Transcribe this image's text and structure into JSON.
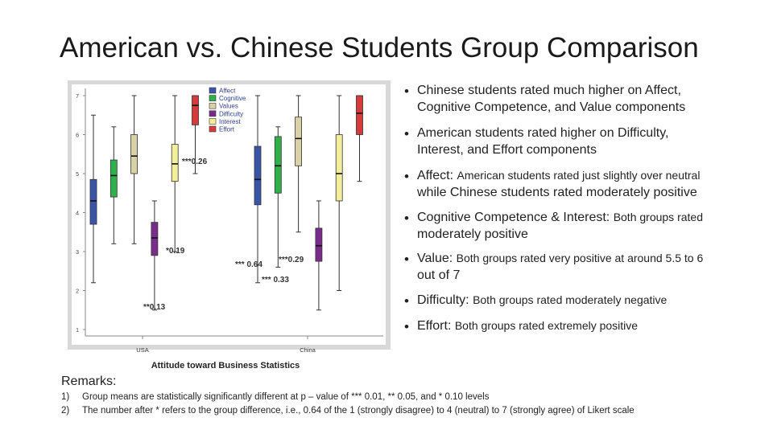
{
  "title": "American vs. Chinese Students Group Comparison",
  "chart_data": {
    "type": "boxplot",
    "xlabel": "Attitude toward Business Statistics",
    "categories": [
      "USA",
      "China"
    ],
    "y_ticks": [
      "1",
      "2",
      "3",
      "4",
      "5",
      "6",
      "7"
    ],
    "ylim": [
      1,
      7
    ],
    "legend": [
      {
        "name": "Affect",
        "color": "#3a55a8"
      },
      {
        "name": "Cognitive",
        "color": "#2fb04a"
      },
      {
        "name": "Values",
        "color": "#d9d2a6"
      },
      {
        "name": "Difficulty",
        "color": "#7a2c8a"
      },
      {
        "name": "Interest",
        "color": "#f3ee9a"
      },
      {
        "name": "Effort",
        "color": "#d63a3a"
      }
    ],
    "series": [
      {
        "name": "Affect",
        "USA": {
          "min": 2.2,
          "q1": 3.7,
          "median": 4.3,
          "q3": 4.85,
          "max": 6.5
        },
        "China": {
          "min": 2.2,
          "q1": 4.2,
          "median": 4.85,
          "q3": 5.7,
          "max": 7.0
        }
      },
      {
        "name": "Cognitive",
        "USA": {
          "min": 3.2,
          "q1": 4.4,
          "median": 4.95,
          "q3": 5.35,
          "max": 6.2
        },
        "China": {
          "min": 2.6,
          "q1": 4.5,
          "median": 5.2,
          "q3": 5.95,
          "max": 6.2
        }
      },
      {
        "name": "Values",
        "USA": {
          "min": 3.2,
          "q1": 5.0,
          "median": 5.45,
          "q3": 6.0,
          "max": 7.0
        },
        "China": {
          "min": 3.5,
          "q1": 5.2,
          "median": 5.9,
          "q3": 6.45,
          "max": 7.0
        }
      },
      {
        "name": "Difficulty",
        "USA": {
          "min": 1.5,
          "q1": 2.9,
          "median": 3.35,
          "q3": 3.75,
          "max": 4.3
        },
        "China": {
          "min": 1.5,
          "q1": 2.75,
          "median": 3.15,
          "q3": 3.6,
          "max": 4.3
        }
      },
      {
        "name": "Interest",
        "USA": {
          "min": 3.0,
          "q1": 4.8,
          "median": 5.25,
          "q3": 5.75,
          "max": 7.0
        },
        "China": {
          "min": 2.0,
          "q1": 4.3,
          "median": 5.0,
          "q3": 6.0,
          "max": 7.0
        }
      },
      {
        "name": "Effort",
        "USA": {
          "min": 5.0,
          "q1": 6.25,
          "median": 6.75,
          "q3": 7.0,
          "max": 7.0
        },
        "China": {
          "min": 4.8,
          "q1": 6.0,
          "median": 6.55,
          "q3": 7.0,
          "max": 7.0
        }
      }
    ],
    "annotations": [
      "***0.26",
      "*0.19",
      "**0.13",
      "*** 0.64",
      "***0.29",
      "*** 0.33"
    ]
  },
  "bullets": [
    {
      "line1": "Chinese students rated much higher on Affect,",
      "line2": "Cognitive Competence, and Value components"
    },
    {
      "line1": "American students rated higher on Difficulty,",
      "line2": "Interest, and Effort components"
    },
    {
      "line1_big": "Affect: ",
      "line1_small": "American students rated just slightly over neutral",
      "line2": "while Chinese students rated moderately positive"
    },
    {
      "line1_big": "Cognitive Competence & Interest: ",
      "line1_small": "Both groups rated",
      "line2": "moderately positive"
    },
    {
      "line1_big": "Value: ",
      "line1_small": "Both groups rated very positive at around 5.5 to 6",
      "line2": "out of 7"
    },
    {
      "line1_big": "Difficulty: ",
      "line1_small": "Both groups rated moderately negative"
    },
    {
      "line1_big": "Effort: ",
      "line1_small": " Both groups rated extremely positive"
    }
  ],
  "remarks": {
    "heading": "Remarks:",
    "notes": [
      {
        "num": "1)",
        "text": "Group means are statistically significantly different at p – value of *** 0.01,  ** 0.05, and * 0.10 levels"
      },
      {
        "num": "2)",
        "text": "The number after * refers to the group difference, i.e., 0.64 of the 1 (strongly disagree) to 4 (neutral) to 7 (strongly agree) of Likert scale"
      }
    ]
  }
}
